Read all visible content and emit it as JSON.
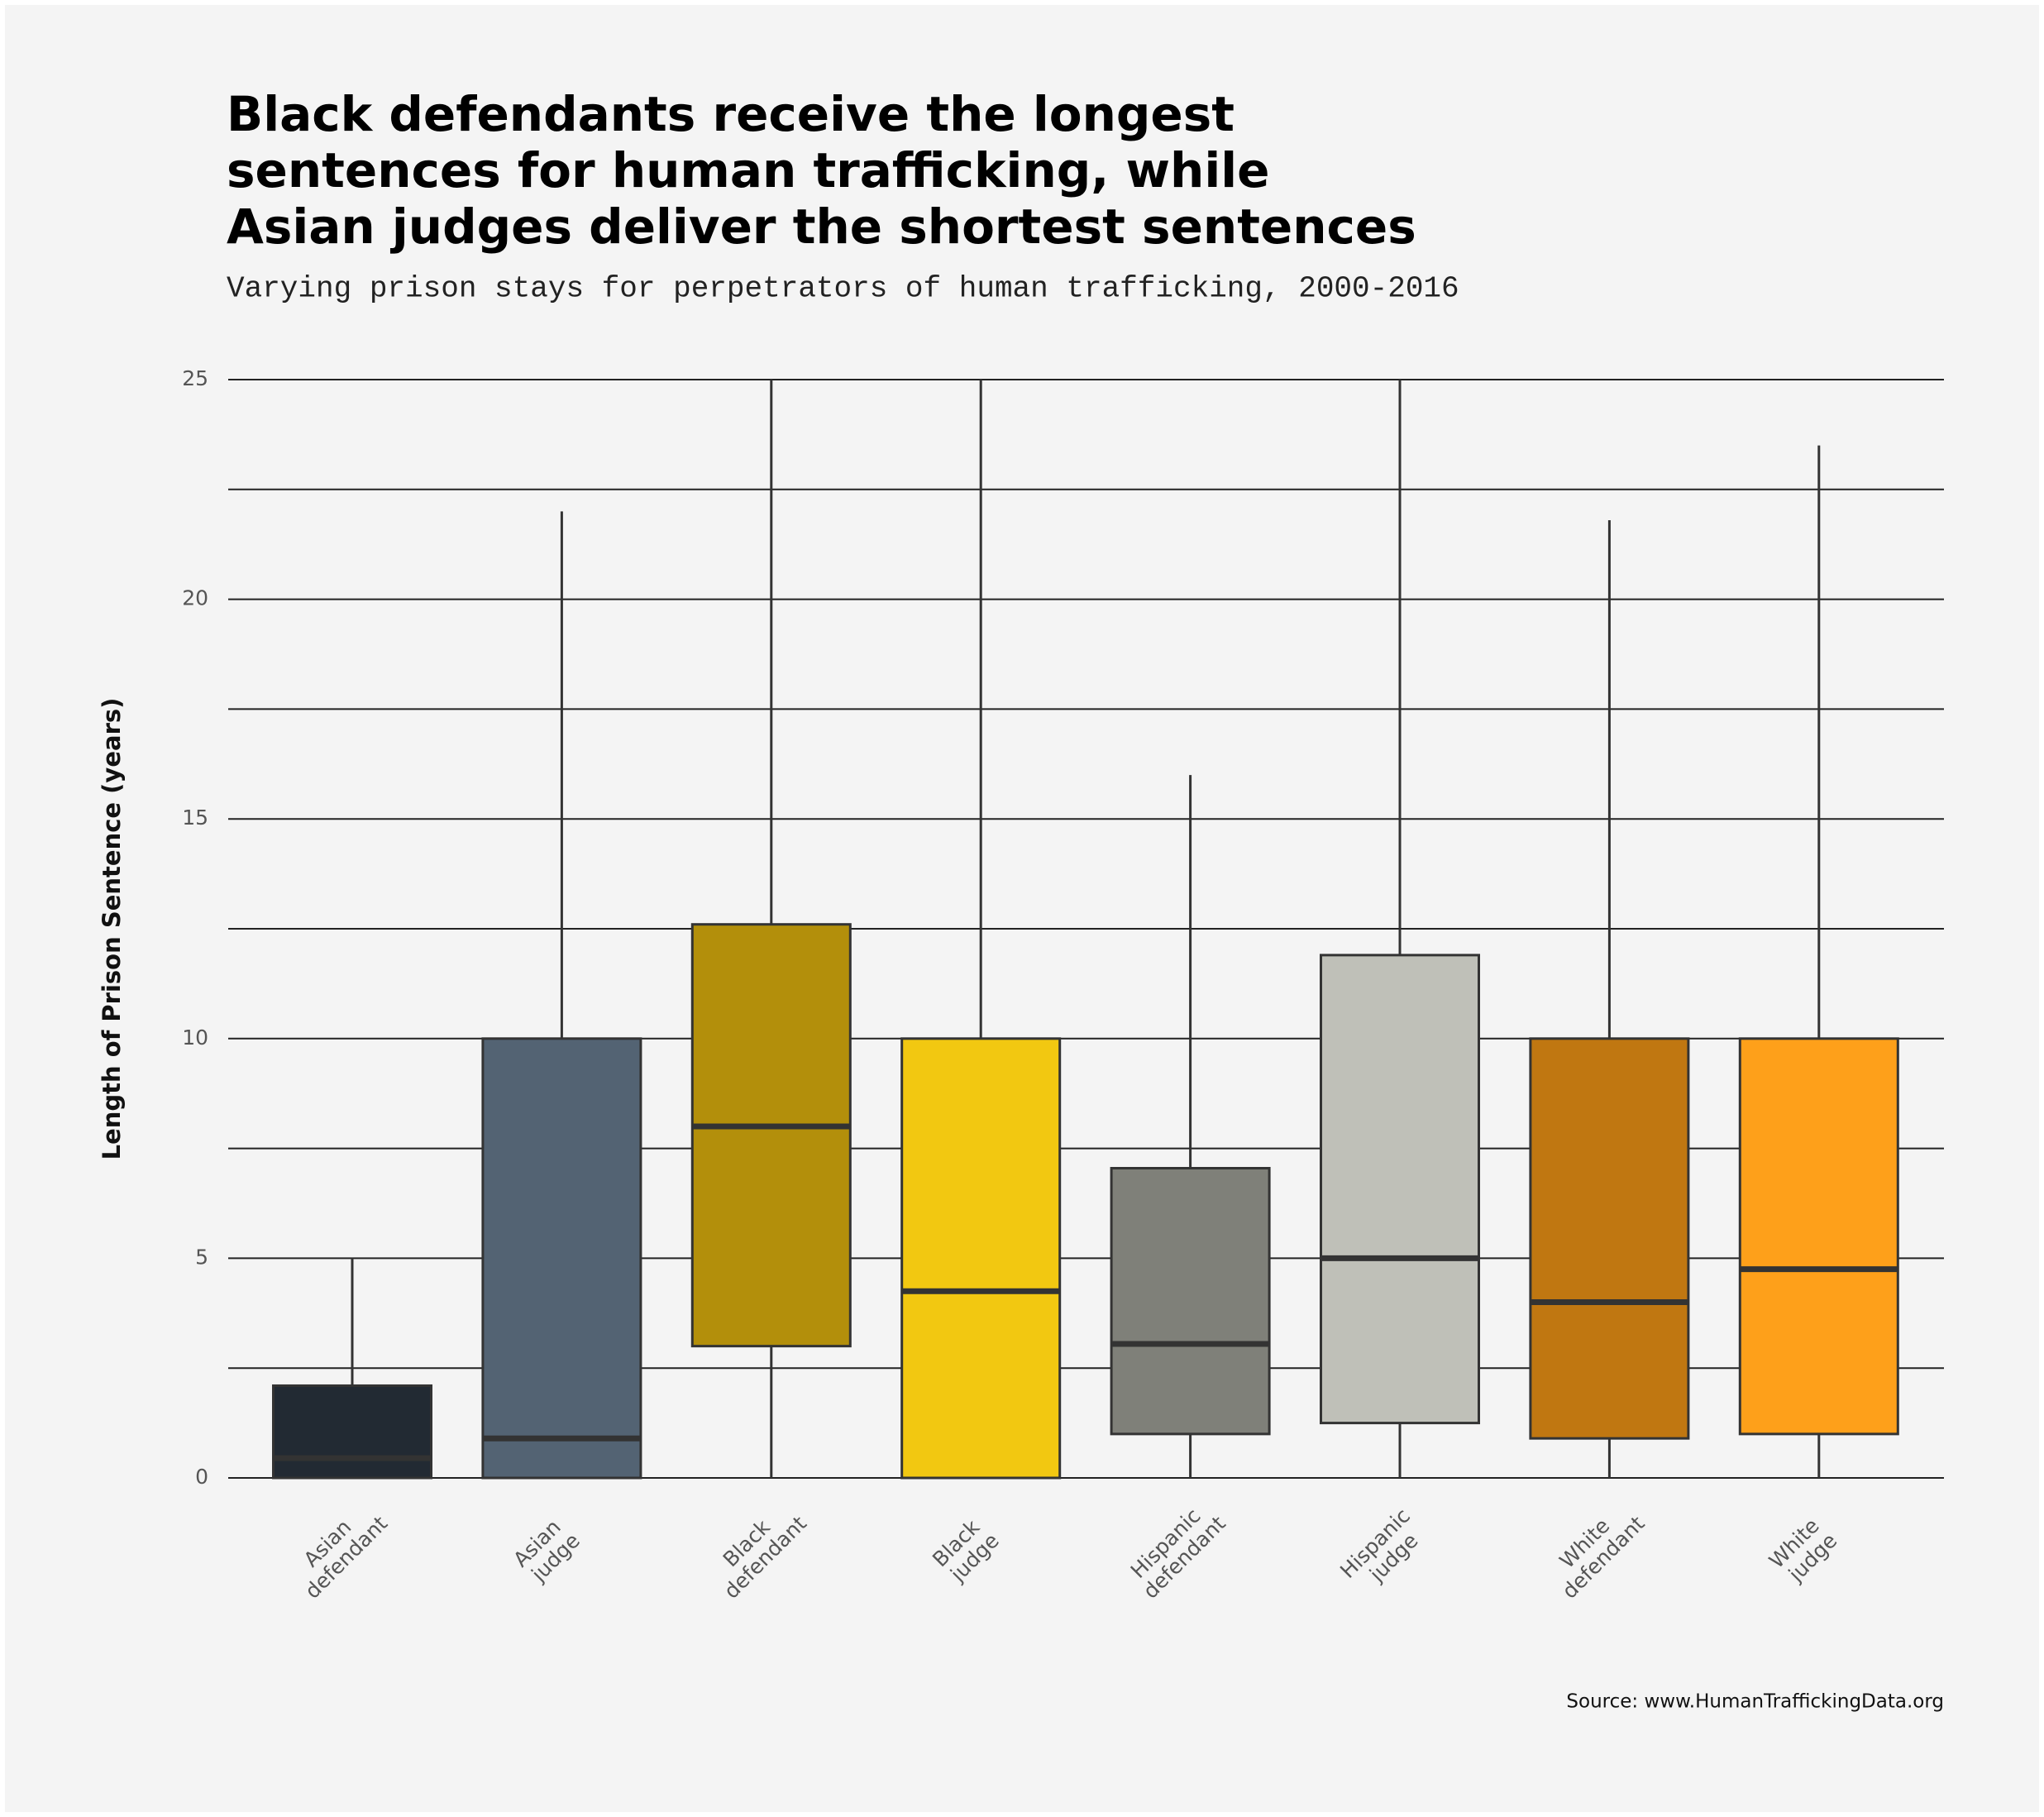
{
  "chart_data": {
    "type": "box",
    "title": [
      "Black defendants receive the longest",
      "sentences for human trafficking, while",
      "Asian judges deliver the shortest sentences"
    ],
    "subtitle": "Varying prison stays for perpetrators of human trafficking, 2000-2016",
    "y_label": "Length of Prison Sentence (years)",
    "source": "Source: www.HumanTraffickingData.org",
    "categories": [
      "Asian defendant",
      "Asian judge",
      "Black defendant",
      "Black judge",
      "Hispanic defendant",
      "Hispanic judge",
      "White defendant",
      "White judge"
    ],
    "whisker_low": [
      0,
      0,
      0,
      0,
      0,
      0,
      0,
      0
    ],
    "q1": [
      0,
      0,
      3,
      0,
      1,
      1.25,
      0.9,
      1
    ],
    "median": [
      0.45,
      0.9,
      8,
      4.25,
      3.05,
      5,
      4,
      4.75
    ],
    "q3": [
      2.1,
      10,
      12.6,
      10,
      7.05,
      11.9,
      10,
      10
    ],
    "whisker_high": [
      5,
      22,
      25,
      25,
      16,
      25,
      21.8,
      23.5
    ],
    "colors": [
      "#222a33",
      "#536373",
      "#b38f0b",
      "#f2c811",
      "#7f8079",
      "#bfc0b8",
      "#c07711",
      "#fea01a"
    ],
    "ylim": [
      0,
      25
    ],
    "yticks": [
      0,
      5,
      10,
      15,
      20,
      25
    ],
    "minor_yticks": [
      2.5,
      7.5,
      12.5,
      17.5,
      22.5
    ],
    "grid": true
  }
}
